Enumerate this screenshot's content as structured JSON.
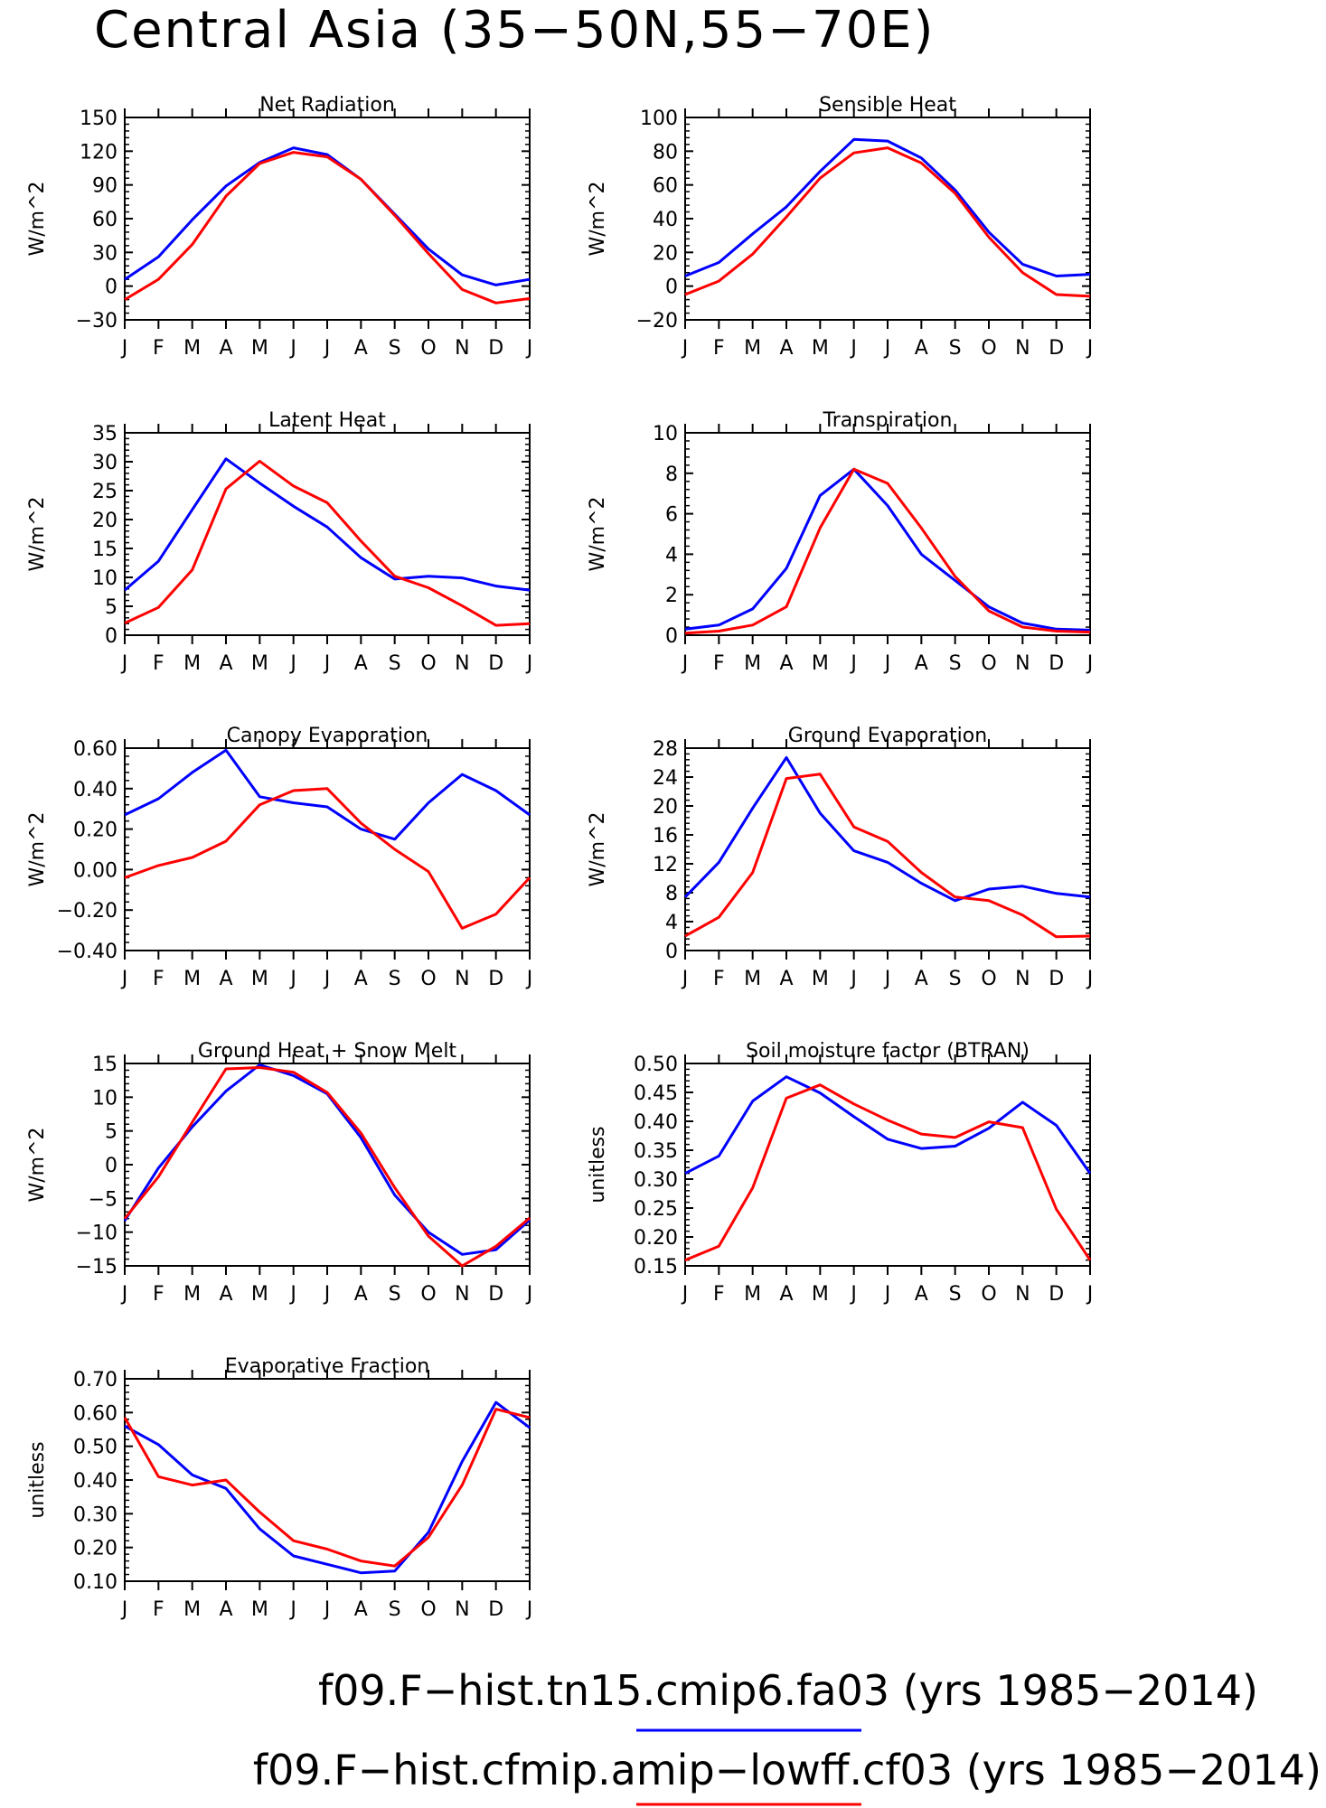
{
  "figure_title": "Central Asia (35−50N,55−70E)",
  "month_labels": [
    "J",
    "F",
    "M",
    "A",
    "M",
    "J",
    "J",
    "A",
    "S",
    "O",
    "N",
    "D",
    "J"
  ],
  "colors": {
    "run1": "#0000ff",
    "run2": "#ff0000",
    "axis": "#000000"
  },
  "legend": [
    {
      "label": "f09.F−hist.tn15.cmip6.fa03 (yrs 1985−2014)",
      "color": "#0000ff"
    },
    {
      "label": "f09.F−hist.cfmip.amip−lowff.cf03 (yrs 1985−2014)",
      "color": "#ff0000"
    }
  ],
  "chart_data": [
    {
      "type": "line",
      "title": "Net Radiation",
      "ylabel": "W/m^2",
      "ylim": [
        -30,
        150
      ],
      "yticks": [
        "-30",
        "0",
        "30",
        "60",
        "90",
        "120",
        "150"
      ],
      "ytick_values": [
        -30,
        0,
        30,
        60,
        90,
        120,
        150
      ],
      "series": [
        {
          "values": [
            6,
            26,
            59,
            89,
            110,
            123,
            117,
            95,
            64,
            33,
            10,
            1,
            6
          ]
        },
        {
          "values": [
            -12,
            6,
            37,
            80,
            109,
            119,
            115,
            95,
            63,
            29,
            -3,
            -15,
            -11
          ]
        }
      ]
    },
    {
      "type": "line",
      "title": "Sensible Heat",
      "ylabel": "W/m^2",
      "ylim": [
        -20,
        100
      ],
      "yticks": [
        "-20",
        "0",
        "20",
        "40",
        "60",
        "80",
        "100"
      ],
      "ytick_values": [
        -20,
        0,
        20,
        40,
        60,
        80,
        100
      ],
      "series": [
        {
          "values": [
            6,
            14,
            31,
            47,
            68,
            87,
            86,
            76,
            57,
            32,
            13,
            6,
            7
          ]
        },
        {
          "values": [
            -5,
            3,
            19,
            41,
            64,
            79,
            82,
            73,
            55,
            29,
            8,
            -5,
            -6
          ]
        }
      ]
    },
    {
      "type": "line",
      "title": "Latent Heat",
      "ylabel": "W/m^2",
      "ylim": [
        0,
        35
      ],
      "yticks": [
        "0",
        "5",
        "10",
        "15",
        "20",
        "25",
        "30",
        "35"
      ],
      "ytick_values": [
        0,
        5,
        10,
        15,
        20,
        25,
        30,
        35
      ],
      "series": [
        {
          "values": [
            7.8,
            12.8,
            21.7,
            30.5,
            26.3,
            22.3,
            18.7,
            13.4,
            9.7,
            10.2,
            9.9,
            8.5,
            7.8
          ]
        },
        {
          "values": [
            2.1,
            4.8,
            11.3,
            25.3,
            30.1,
            25.8,
            22.9,
            16.3,
            10.2,
            8.2,
            5.1,
            1.7,
            2.0
          ]
        }
      ]
    },
    {
      "type": "line",
      "title": "Transpiration",
      "ylabel": "W/m^2",
      "ylim": [
        0,
        10
      ],
      "yticks": [
        "0",
        "2",
        "4",
        "6",
        "8",
        "10"
      ],
      "ytick_values": [
        0,
        2,
        4,
        6,
        8,
        10
      ],
      "series": [
        {
          "values": [
            0.3,
            0.5,
            1.3,
            3.3,
            6.9,
            8.2,
            6.4,
            4.0,
            2.7,
            1.4,
            0.6,
            0.3,
            0.25
          ]
        },
        {
          "values": [
            0.1,
            0.2,
            0.5,
            1.4,
            5.3,
            8.2,
            7.5,
            5.3,
            2.9,
            1.2,
            0.4,
            0.2,
            0.15
          ]
        }
      ]
    },
    {
      "type": "line",
      "title": "Canopy Evaporation",
      "ylabel": "W/m^2",
      "ylim": [
        -0.4,
        0.6
      ],
      "yticks": [
        "-0.40",
        "-0.20",
        "0.00",
        "0.20",
        "0.40",
        "0.60"
      ],
      "ytick_values": [
        -0.4,
        -0.2,
        0,
        0.2,
        0.4,
        0.6
      ],
      "series": [
        {
          "values": [
            0.27,
            0.35,
            0.48,
            0.59,
            0.36,
            0.33,
            0.31,
            0.2,
            0.15,
            0.33,
            0.47,
            0.39,
            0.27
          ]
        },
        {
          "values": [
            -0.04,
            0.02,
            0.06,
            0.14,
            0.32,
            0.39,
            0.4,
            0.23,
            0.1,
            -0.01,
            -0.29,
            -0.22,
            -0.04
          ]
        }
      ]
    },
    {
      "type": "line",
      "title": "Ground Evaporation",
      "ylabel": "W/m^2",
      "ylim": [
        0,
        28
      ],
      "yticks": [
        "0",
        "4",
        "8",
        "12",
        "16",
        "20",
        "24",
        "28"
      ],
      "ytick_values": [
        0,
        4,
        8,
        12,
        16,
        20,
        24,
        28
      ],
      "series": [
        {
          "values": [
            7.4,
            12.2,
            19.7,
            26.7,
            19.0,
            13.8,
            12.2,
            9.3,
            6.9,
            8.5,
            8.9,
            7.9,
            7.4
          ]
        },
        {
          "values": [
            2.0,
            4.6,
            10.8,
            23.8,
            24.4,
            17.1,
            15.1,
            10.8,
            7.4,
            6.9,
            4.9,
            1.9,
            2.0
          ]
        }
      ]
    },
    {
      "type": "line",
      "title": "Ground Heat + Snow Melt",
      "ylabel": "W/m^2",
      "ylim": [
        -15,
        15
      ],
      "yticks": [
        "-15",
        "-10",
        "-5",
        "0",
        "5",
        "10",
        "15"
      ],
      "ytick_values": [
        -15,
        -10,
        -5,
        0,
        5,
        10,
        15
      ],
      "series": [
        {
          "values": [
            -8.3,
            -0.5,
            5.6,
            10.9,
            14.8,
            13.2,
            10.5,
            4.0,
            -4.5,
            -10.0,
            -13.3,
            -12.6,
            -8.2
          ]
        },
        {
          "values": [
            -8.0,
            -1.8,
            6.3,
            14.2,
            14.4,
            13.7,
            10.7,
            4.7,
            -3.4,
            -10.6,
            -15.0,
            -12.1,
            -7.9
          ]
        }
      ]
    },
    {
      "type": "line",
      "title": "Soil moisture factor (BTRAN)",
      "ylabel": "unitless",
      "ylim": [
        0.15,
        0.5
      ],
      "yticks": [
        "0.15",
        "0.20",
        "0.25",
        "0.30",
        "0.35",
        "0.40",
        "0.45",
        "0.50"
      ],
      "ytick_values": [
        0.15,
        0.2,
        0.25,
        0.3,
        0.35,
        0.4,
        0.45,
        0.5
      ],
      "series": [
        {
          "values": [
            0.31,
            0.34,
            0.435,
            0.477,
            0.449,
            0.408,
            0.369,
            0.353,
            0.357,
            0.388,
            0.433,
            0.393,
            0.31
          ]
        },
        {
          "values": [
            0.16,
            0.184,
            0.285,
            0.44,
            0.463,
            0.43,
            0.402,
            0.378,
            0.372,
            0.399,
            0.389,
            0.248,
            0.16
          ]
        }
      ]
    },
    {
      "type": "line",
      "title": "Evaporative Fraction",
      "ylabel": "unitless",
      "ylim": [
        0.1,
        0.7
      ],
      "yticks": [
        "0.10",
        "0.20",
        "0.30",
        "0.40",
        "0.50",
        "0.60",
        "0.70"
      ],
      "ytick_values": [
        0.1,
        0.2,
        0.3,
        0.4,
        0.5,
        0.6,
        0.7
      ],
      "series": [
        {
          "values": [
            0.56,
            0.505,
            0.415,
            0.375,
            0.255,
            0.175,
            0.15,
            0.125,
            0.13,
            0.245,
            0.455,
            0.63,
            0.555
          ]
        },
        {
          "values": [
            0.585,
            0.41,
            0.385,
            0.4,
            0.305,
            0.22,
            0.195,
            0.16,
            0.145,
            0.23,
            0.385,
            0.61,
            0.585
          ]
        }
      ]
    }
  ]
}
